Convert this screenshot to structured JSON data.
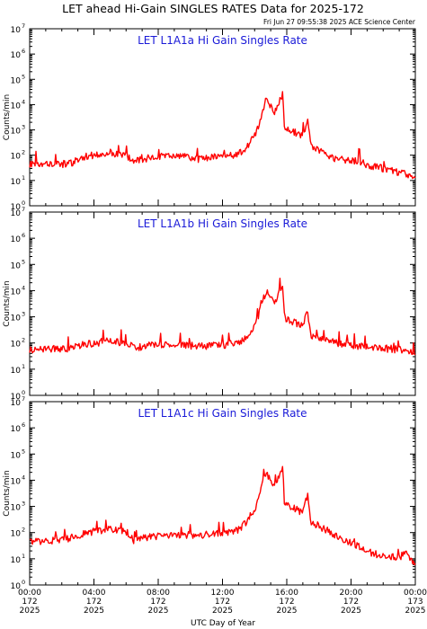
{
  "header": {
    "title": "LET ahead Hi-Gain SINGLES RATES Data for 2025-172",
    "timestamp": "Fri Jun 27 09:55:38 2025 ACE Science Center"
  },
  "axes": {
    "ylabel": "Counts/min",
    "xlabel": "UTC Day of Year",
    "y_tick_base": "10",
    "y_tick_exponents": [
      "0",
      "1",
      "2",
      "3",
      "4",
      "5",
      "6",
      "7"
    ],
    "x_tick_labels": [
      {
        "time": "00:00",
        "day": "172",
        "year": "2025"
      },
      {
        "time": "04:00",
        "day": "172",
        "year": "2025"
      },
      {
        "time": "08:00",
        "day": "172",
        "year": "2025"
      },
      {
        "time": "12:00",
        "day": "172",
        "year": "2025"
      },
      {
        "time": "16:00",
        "day": "172",
        "year": "2025"
      },
      {
        "time": "20:00",
        "day": "172",
        "year": "2025"
      },
      {
        "time": "00:00",
        "day": "173",
        "year": "2025"
      }
    ]
  },
  "colors": {
    "series": "#ff0000",
    "panel_title": "#1a1ad8",
    "axes": "#000000"
  },
  "chart_data": [
    {
      "type": "line",
      "title": "LET L1A1a Hi Gain Singles Rate",
      "xlabel": "",
      "ylabel": "Counts/min",
      "xlim": [
        0,
        24
      ],
      "ylim": [
        1,
        10000000
      ],
      "yscale": "log",
      "grid": false,
      "x": [
        0,
        0.5,
        1,
        1.5,
        2,
        2.5,
        3,
        3.5,
        4,
        4.5,
        5,
        5.5,
        6,
        6.5,
        7,
        7.5,
        8,
        8.5,
        9,
        9.5,
        10,
        10.5,
        11,
        11.5,
        12,
        12.5,
        13,
        13.5,
        14,
        14.25,
        14.5,
        14.75,
        15,
        15.25,
        15.5,
        15.75,
        15.85,
        16,
        16.5,
        17,
        17.3,
        17.5,
        18,
        18.5,
        19,
        19.5,
        20,
        20.5,
        21,
        21.5,
        22,
        22.5,
        23,
        23.5,
        24
      ],
      "y": [
        45,
        50,
        45,
        50,
        45,
        45,
        70,
        90,
        100,
        110,
        130,
        110,
        100,
        55,
        65,
        80,
        90,
        85,
        90,
        100,
        80,
        70,
        75,
        90,
        80,
        95,
        110,
        200,
        600,
        1500,
        6000,
        18000,
        8000,
        5000,
        12000,
        28000,
        1500,
        1000,
        800,
        600,
        2500,
        200,
        150,
        100,
        75,
        70,
        60,
        60,
        40,
        35,
        30,
        25,
        20,
        18,
        12
      ]
    },
    {
      "type": "line",
      "title": "LET L1A1b Hi Gain Singles Rate",
      "xlabel": "",
      "ylabel": "Counts/min",
      "xlim": [
        0,
        24
      ],
      "ylim": [
        1,
        10000000
      ],
      "yscale": "log",
      "grid": false,
      "x": [
        0,
        0.5,
        1,
        1.5,
        2,
        2.5,
        3,
        3.5,
        4,
        4.5,
        5,
        5.5,
        6,
        6.5,
        7,
        7.5,
        8,
        8.5,
        9,
        9.5,
        10,
        10.5,
        11,
        11.5,
        12,
        12.5,
        13,
        13.5,
        14,
        14.25,
        14.5,
        14.75,
        15,
        15.25,
        15.5,
        15.75,
        15.85,
        16,
        16.5,
        17,
        17.3,
        17.5,
        18,
        18.5,
        19,
        19.5,
        20,
        20.5,
        21,
        21.5,
        22,
        22.5,
        23,
        23.5,
        24
      ],
      "y": [
        55,
        60,
        55,
        60,
        60,
        60,
        80,
        90,
        100,
        110,
        130,
        110,
        100,
        65,
        70,
        80,
        85,
        80,
        85,
        90,
        80,
        75,
        75,
        85,
        85,
        90,
        100,
        150,
        400,
        1200,
        4000,
        10000,
        5000,
        3000,
        8000,
        15000,
        1200,
        800,
        600,
        500,
        1500,
        200,
        150,
        120,
        100,
        90,
        80,
        75,
        70,
        65,
        60,
        60,
        55,
        50,
        40
      ]
    },
    {
      "type": "line",
      "title": "LET L1A1c Hi Gain Singles Rate",
      "xlabel": "UTC Day of Year",
      "ylabel": "Counts/min",
      "xlim": [
        0,
        24
      ],
      "ylim": [
        1,
        10000000
      ],
      "yscale": "log",
      "grid": false,
      "x": [
        0,
        0.5,
        1,
        1.5,
        2,
        2.5,
        3,
        3.5,
        4,
        4.5,
        5,
        5.5,
        6,
        6.5,
        7,
        7.5,
        8,
        8.5,
        9,
        9.5,
        10,
        10.5,
        11,
        11.5,
        12,
        12.5,
        13,
        13.5,
        14,
        14.25,
        14.5,
        14.75,
        15,
        15.25,
        15.5,
        15.75,
        15.85,
        16,
        16.5,
        17,
        17.3,
        17.5,
        18,
        18.5,
        19,
        19.5,
        20,
        20.5,
        21,
        21.5,
        22,
        22.5,
        23,
        23.5,
        24
      ],
      "y": [
        40,
        45,
        45,
        50,
        60,
        60,
        80,
        100,
        110,
        120,
        130,
        120,
        110,
        50,
        60,
        70,
        75,
        70,
        75,
        80,
        80,
        75,
        85,
        95,
        100,
        110,
        130,
        250,
        800,
        2000,
        8000,
        20000,
        8000,
        5000,
        15000,
        30000,
        1500,
        1200,
        800,
        600,
        3000,
        250,
        180,
        120,
        80,
        50,
        40,
        30,
        20,
        15,
        15,
        12,
        12,
        15,
        6
      ]
    }
  ]
}
